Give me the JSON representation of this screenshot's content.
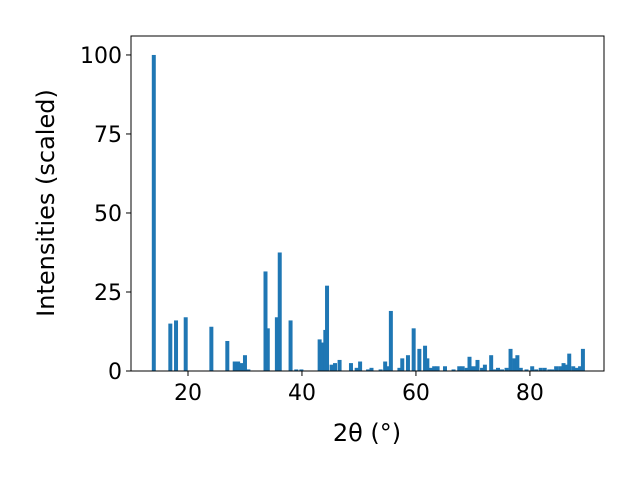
{
  "chart_data": {
    "type": "bar",
    "xlabel": "2θ (°)",
    "ylabel": "Intensities (scaled)",
    "xlim": [
      10,
      93
    ],
    "ylim": [
      0,
      106
    ],
    "xticks": [
      20,
      40,
      60,
      80
    ],
    "yticks": [
      0,
      25,
      50,
      75,
      100
    ],
    "grid": false,
    "bar_color": "#1f77b4",
    "bar_width": 0.7,
    "series": [
      {
        "x": [
          14.0,
          16.9,
          17.9,
          19.6,
          24.1,
          26.9,
          28.2,
          28.8,
          29.4,
          30.0,
          30.6,
          33.6,
          34.0,
          35.6,
          36.1,
          38.0,
          39.0,
          39.9,
          43.1,
          43.6,
          44.1,
          44.4,
          45.2,
          45.8,
          46.6,
          48.6,
          49.6,
          50.2,
          51.6,
          52.2,
          53.8,
          54.6,
          55.1,
          55.6,
          57.1,
          57.6,
          58.6,
          59.6,
          60.6,
          61.6,
          62.0,
          62.6,
          63.2,
          63.8,
          65.1,
          66.6,
          67.6,
          68.2,
          68.9,
          69.4,
          70.1,
          70.8,
          71.6,
          72.1,
          73.2,
          73.8,
          74.4,
          75.1,
          75.9,
          76.6,
          77.3,
          77.8,
          78.4,
          79.4,
          80.4,
          81.1,
          81.9,
          82.6,
          83.4,
          83.9,
          84.6,
          85.3,
          85.9,
          86.4,
          86.9,
          87.6,
          88.2,
          88.8,
          89.3
        ],
        "values": [
          100,
          15,
          16,
          17,
          14,
          9.5,
          3,
          3,
          2.5,
          5,
          0.5,
          31.5,
          13.5,
          17,
          37.5,
          16,
          0.5,
          0.5,
          10,
          9,
          13,
          27,
          2,
          2.5,
          3.5,
          2.5,
          1,
          3,
          0.5,
          1,
          0.5,
          3,
          1.5,
          19,
          1,
          4,
          5,
          13.5,
          7,
          8,
          4,
          1,
          1.5,
          1.5,
          1.5,
          0.5,
          1.5,
          1.5,
          1,
          4.5,
          1.5,
          3.5,
          1,
          2,
          5,
          0.5,
          1,
          0.5,
          1,
          7,
          4,
          5,
          1,
          0.5,
          1.5,
          0.5,
          1,
          1,
          0.5,
          0.5,
          1.5,
          1.5,
          2.5,
          2,
          5.5,
          1.5,
          1,
          1.5,
          7
        ]
      }
    ]
  }
}
